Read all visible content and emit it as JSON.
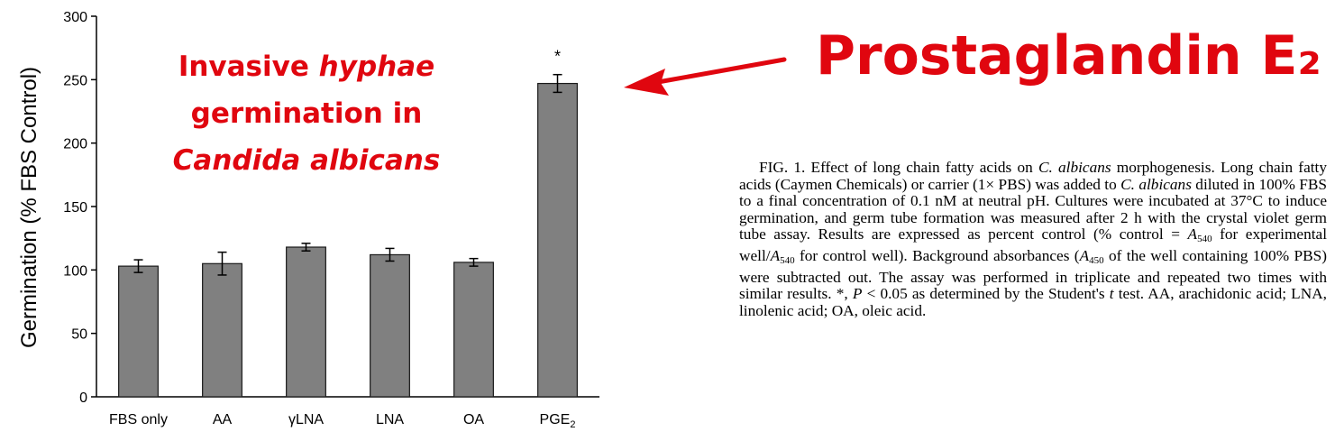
{
  "chart_data": {
    "type": "bar",
    "categories": [
      "FBS only",
      "AA",
      "γLNA",
      "LNA",
      "OA",
      "PGE2"
    ],
    "category_display": [
      {
        "base": "FBS only",
        "sub": ""
      },
      {
        "base": "AA",
        "sub": ""
      },
      {
        "base": "γLNA",
        "sub": ""
      },
      {
        "base": "LNA",
        "sub": ""
      },
      {
        "base": "OA",
        "sub": ""
      },
      {
        "base": "PGE",
        "sub": "2"
      }
    ],
    "values": [
      103,
      105,
      118,
      112,
      106,
      247
    ],
    "errors": [
      5,
      9,
      3,
      5,
      3,
      7
    ],
    "significance": [
      "",
      "",
      "",
      "",
      "",
      "*"
    ],
    "title": "",
    "xlabel": "",
    "ylabel": "Germination (% FBS Control)",
    "ylim": [
      0,
      300
    ],
    "yticks": [
      0,
      50,
      100,
      150,
      200,
      250,
      300
    ],
    "grid": false,
    "bar_color": "#808080",
    "bar_edge_color": "#1a1a1a"
  },
  "annotation": {
    "line1_pre": "Invasive ",
    "line1_italic": "hyphae",
    "line2": "germination  in",
    "line3": "Candida albicans",
    "color": "#e0060f"
  },
  "headline": {
    "text": "Prostaglandin E₂",
    "color": "#e0060f",
    "arrow_color": "#e0060f"
  },
  "caption": {
    "fig_label": "FIG. 1.",
    "s1_a": " Effect of long chain fatty acids on ",
    "s1_i": "C. albicans",
    "s1_b": " morphogenesis. Long chain fatty acids (Caymen Chemicals) or carrier (1× PBS) was added to ",
    "s1_i2": "C. albicans",
    "s1_c": " diluted in 100% FBS to a final concentration of 0.1 nM at neutral pH. Cultures were incubated at 37°C to induce germination, and germ tube formation was measured after 2 h with the crystal violet germ tube assay. Results are expressed as percent control (% control = ",
    "a540_a": "A",
    "a540_sub": "540",
    "mid": " for experimental well/",
    "a540_b": "A",
    "a540_sub2": "540",
    "s2": " for control well). Background absorbances (",
    "a450": "A",
    "a450_sub": "450",
    "s3": " of the well containing 100% PBS) were subtracted out. The assay was performed in triplicate and repeated two times with similar results. *, ",
    "p_i": "P",
    "s4": " < 0.05 as determined by the Student's ",
    "t_i": "t",
    "s5": " test. AA, arachidonic acid; LNA, linolenic acid; OA, oleic acid."
  }
}
